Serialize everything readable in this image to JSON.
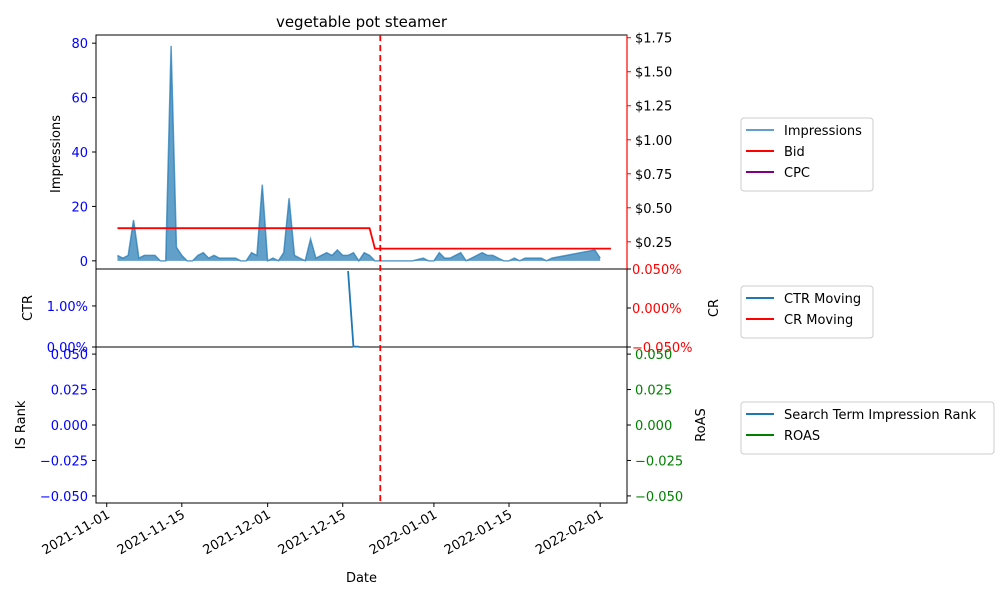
{
  "chart_data": {
    "type": "line",
    "title": "vegetable pot steamer",
    "xlabel": "Date",
    "x_ticks": [
      "2021-11-01",
      "2021-11-15",
      "2021-12-01",
      "2021-12-15",
      "2022-01-01",
      "2022-01-15",
      "2022-02-01"
    ],
    "x_range": [
      "2021-10-30",
      "2022-02-06"
    ],
    "vline_date": "2021-12-22",
    "panels": [
      {
        "id": "top",
        "left_label": "Impressions",
        "left_ticks": [
          "0",
          "20",
          "40",
          "60",
          "80"
        ],
        "left_range": [
          -3,
          83
        ],
        "right_ticks": [
          "$0.25",
          "$0.50",
          "$0.75",
          "$1.00",
          "$1.25",
          "$1.50",
          "$1.75"
        ],
        "right_range": [
          0.05,
          1.77
        ],
        "series": [
          {
            "name": "Impressions",
            "axis": "left",
            "style": "area",
            "color": "#1f77b4",
            "x": [
              "2021-11-03",
              "2021-11-04",
              "2021-11-05",
              "2021-11-06",
              "2021-11-07",
              "2021-11-08",
              "2021-11-09",
              "2021-11-10",
              "2021-11-11",
              "2021-11-12",
              "2021-11-13",
              "2021-11-14",
              "2021-11-15",
              "2021-11-16",
              "2021-11-17",
              "2021-11-18",
              "2021-11-19",
              "2021-11-20",
              "2021-11-21",
              "2021-11-22",
              "2021-11-23",
              "2021-11-24",
              "2021-11-25",
              "2021-11-26",
              "2021-11-27",
              "2021-11-28",
              "2021-11-29",
              "2021-11-30",
              "2021-12-01",
              "2021-12-02",
              "2021-12-03",
              "2021-12-04",
              "2021-12-05",
              "2021-12-06",
              "2021-12-07",
              "2021-12-08",
              "2021-12-09",
              "2021-12-10",
              "2021-12-11",
              "2021-12-12",
              "2021-12-13",
              "2021-12-14",
              "2021-12-15",
              "2021-12-16",
              "2021-12-17",
              "2021-12-18",
              "2021-12-19",
              "2021-12-20",
              "2021-12-21",
              "2021-12-22",
              "2021-12-23",
              "2021-12-24",
              "2021-12-26",
              "2021-12-28",
              "2021-12-30",
              "2021-12-31",
              "2022-01-01",
              "2022-01-02",
              "2022-01-03",
              "2022-01-04",
              "2022-01-05",
              "2022-01-06",
              "2022-01-07",
              "2022-01-08",
              "2022-01-09",
              "2022-01-10",
              "2022-01-11",
              "2022-01-12",
              "2022-01-13",
              "2022-01-14",
              "2022-01-15",
              "2022-01-16",
              "2022-01-17",
              "2022-01-18",
              "2022-01-19",
              "2022-01-20",
              "2022-01-21",
              "2022-01-22",
              "2022-01-23",
              "2022-01-31",
              "2022-02-01"
            ],
            "values": [
              2,
              1,
              2,
              15,
              1,
              2,
              2,
              2,
              0,
              0,
              79,
              5,
              2,
              0,
              0,
              2,
              3,
              1,
              2,
              1,
              1,
              1,
              1,
              0,
              0,
              3,
              2,
              28,
              0,
              1,
              0,
              3,
              23,
              2,
              1,
              0,
              8,
              1,
              2,
              3,
              2,
              4,
              2,
              2,
              3,
              0,
              3,
              2,
              0,
              0,
              0,
              0,
              0,
              0,
              1,
              0,
              0,
              3,
              1,
              1,
              2,
              3,
              0,
              1,
              2,
              3,
              2,
              2,
              1,
              0,
              0,
              1,
              0,
              1,
              1,
              1,
              1,
              0,
              1,
              4,
              1
            ]
          },
          {
            "name": "Bid",
            "axis": "right",
            "style": "line",
            "color": "#ff0000",
            "x": [
              "2021-11-03",
              "2021-12-20",
              "2021-12-21",
              "2022-02-03"
            ],
            "values": [
              0.35,
              0.35,
              0.2,
              0.2
            ]
          },
          {
            "name": "CPC",
            "axis": "right",
            "style": "line",
            "color": "#800080",
            "x": [],
            "values": []
          }
        ]
      },
      {
        "id": "middle",
        "left_label": "CTR",
        "left_ticks": [
          "0.00%",
          "1.00%"
        ],
        "left_range": [
          0,
          0.019
        ],
        "right_label": "CR",
        "right_ticks": [
          "0.050%",
          "0.000%",
          "−0.050%"
        ],
        "right_range": [
          -0.05,
          0.05
        ],
        "series": [
          {
            "name": "CTR Moving",
            "axis": "left",
            "style": "line",
            "color": "#1f77b4",
            "x": [
              "2021-12-16",
              "2021-12-17",
              "2021-12-18"
            ],
            "values": [
              0.0185,
              0.0001,
              0.0001
            ]
          },
          {
            "name": "CR Moving",
            "axis": "right",
            "style": "line",
            "color": "#ff0000",
            "x": [],
            "values": []
          }
        ]
      },
      {
        "id": "bottom",
        "left_label": "IS Rank",
        "left_ticks": [
          "−0.050",
          "−0.025",
          "0.000",
          "0.025",
          "0.050"
        ],
        "left_range": [
          -0.055,
          0.055
        ],
        "right_label": "RoAS",
        "right_ticks": [
          "−0.050",
          "−0.025",
          "0.000",
          "0.025",
          "0.050"
        ],
        "right_range": [
          -0.055,
          0.055
        ],
        "series": [
          {
            "name": "Search Term Impression Rank",
            "axis": "left",
            "style": "line",
            "color": "#1f77b4",
            "x": [],
            "values": []
          },
          {
            "name": "ROAS",
            "axis": "right",
            "style": "line",
            "color": "#008000",
            "x": [],
            "values": []
          }
        ]
      }
    ]
  },
  "colors": {
    "left_axis": "#0000ff",
    "right_axis_top": "#ff0000",
    "right_axis_middle": "#ff0000",
    "right_axis_bottom": "#008000",
    "vline": "#ff0000"
  }
}
